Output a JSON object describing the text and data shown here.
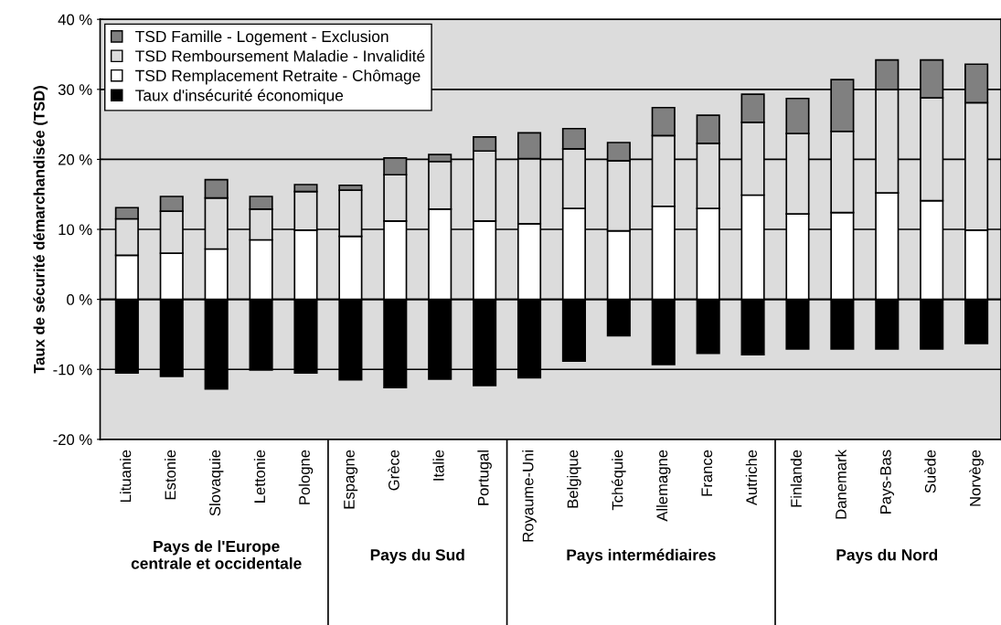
{
  "chart_data": {
    "type": "bar",
    "stacked": true,
    "ylabel": "Taux de sécurité démarchandisée (TSD)",
    "categories": [
      "Lituanie",
      "Estonie",
      "Slovaquie",
      "Lettonie",
      "Pologne",
      "Espagne",
      "Grèce",
      "Italie",
      "Portugal",
      "Royaume-Uni",
      "Belgique",
      "Tchéquie",
      "Allemagne",
      "France",
      "Autriche",
      "Finlande",
      "Danemark",
      "Pays-Bas",
      "Suède",
      "Norvège"
    ],
    "series": [
      {
        "name": "Taux d'insécurité économique",
        "color": "#000000",
        "values": [
          -10.5,
          -11.0,
          -12.8,
          -10.1,
          -10.5,
          -11.5,
          -12.6,
          -11.4,
          -12.3,
          -11.2,
          -8.8,
          -5.2,
          -9.3,
          -7.7,
          -7.9,
          -7.1,
          -7.1,
          -7.1,
          -7.1,
          -6.3
        ]
      },
      {
        "name": "TSD Remplacement Retraite - Chômage",
        "color": "#ffffff",
        "values": [
          6.3,
          6.6,
          7.2,
          8.5,
          9.9,
          9.0,
          11.2,
          12.9,
          11.2,
          10.8,
          13.0,
          9.8,
          13.3,
          13.0,
          14.9,
          12.2,
          12.4,
          15.2,
          14.1,
          9.9
        ]
      },
      {
        "name": "TSD Remboursement Maladie - Invalidité",
        "color": "#dcdcdc",
        "values": [
          5.2,
          6.0,
          7.3,
          4.4,
          5.5,
          6.6,
          6.6,
          6.8,
          10.0,
          9.3,
          8.5,
          10.0,
          10.1,
          9.3,
          10.4,
          11.5,
          11.6,
          14.8,
          14.7,
          18.2
        ]
      },
      {
        "name": "TSD Famille - Logement - Exclusion",
        "color": "#808080",
        "values": [
          1.6,
          2.1,
          2.6,
          1.8,
          1.0,
          0.7,
          2.4,
          1.0,
          2.0,
          3.7,
          2.9,
          2.6,
          4.0,
          4.0,
          4.0,
          5.0,
          7.4,
          4.2,
          5.4,
          5.5
        ]
      }
    ],
    "ylim": [
      -20,
      40
    ],
    "yticks": [
      {
        "value": -20,
        "label": "-20 %"
      },
      {
        "value": -10,
        "label": "-10 %"
      },
      {
        "value": 0,
        "label": "0 %"
      },
      {
        "value": 10,
        "label": "10 %"
      },
      {
        "value": 20,
        "label": "20 %"
      },
      {
        "value": 30,
        "label": "30 %"
      },
      {
        "value": 40,
        "label": "40 %"
      }
    ],
    "grid": "y",
    "legend": "top left",
    "annotations": [
      "Pays de l'Europe\ncentrale et occidentale",
      "Pays du Sud",
      "Pays intermédiaires",
      "Pays du Nord"
    ]
  }
}
